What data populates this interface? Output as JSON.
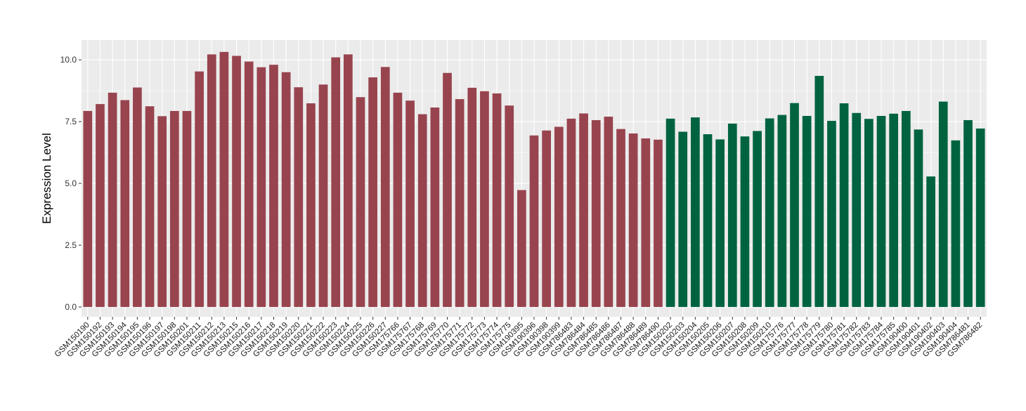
{
  "chart_data": {
    "type": "bar",
    "title": "",
    "xlabel": "",
    "ylabel": "Expression Level",
    "ylim": [
      -0.4,
      10.8
    ],
    "yticks": [
      "0.0",
      "2.5",
      "5.0",
      "7.5",
      "10.0"
    ],
    "grid": true,
    "legend": "none",
    "colors": {
      "series_1": "#98444f",
      "series_2": "#006340",
      "panel": "#ebebeb",
      "grid": "#ffffff"
    },
    "categories": [
      "GSM150190",
      "GSM150192",
      "GSM150193",
      "GSM150194",
      "GSM150195",
      "GSM150196",
      "GSM150197",
      "GSM150198",
      "GSM150201",
      "GSM150211",
      "GSM150212",
      "GSM150213",
      "GSM150215",
      "GSM150216",
      "GSM150217",
      "GSM150218",
      "GSM150219",
      "GSM150220",
      "GSM150221",
      "GSM150222",
      "GSM150223",
      "GSM150224",
      "GSM150225",
      "GSM150226",
      "GSM150227",
      "GSM175766",
      "GSM175767",
      "GSM175768",
      "GSM175769",
      "GSM175770",
      "GSM175771",
      "GSM175772",
      "GSM175773",
      "GSM175774",
      "GSM175775",
      "GSM190395",
      "GSM190396",
      "GSM190398",
      "GSM190399",
      "GSM786483",
      "GSM786484",
      "GSM786485",
      "GSM786486",
      "GSM786487",
      "GSM786488",
      "GSM786489",
      "GSM786490",
      "GSM150202",
      "GSM150203",
      "GSM150204",
      "GSM150205",
      "GSM150206",
      "GSM150207",
      "GSM150208",
      "GSM150209",
      "GSM150210",
      "GSM175776",
      "GSM175777",
      "GSM175778",
      "GSM175779",
      "GSM175780",
      "GSM175781",
      "GSM175782",
      "GSM175783",
      "GSM175784",
      "GSM175785",
      "GSM190400",
      "GSM190401",
      "GSM190402",
      "GSM190403",
      "GSM190404",
      "GSM786481",
      "GSM786482"
    ],
    "values": [
      7.93,
      8.21,
      8.67,
      8.37,
      8.88,
      8.12,
      7.72,
      7.93,
      7.93,
      9.53,
      10.22,
      10.32,
      10.16,
      9.93,
      9.7,
      9.8,
      9.5,
      8.89,
      8.24,
      9.0,
      10.1,
      10.22,
      8.49,
      9.29,
      9.71,
      8.67,
      8.35,
      7.8,
      8.07,
      9.47,
      8.41,
      8.87,
      8.73,
      8.64,
      8.15,
      4.73,
      6.94,
      7.14,
      7.29,
      7.62,
      7.83,
      7.56,
      7.7,
      7.2,
      7.02,
      6.82,
      6.77,
      7.62,
      7.09,
      7.67,
      6.99,
      6.78,
      7.42,
      6.9,
      7.12,
      7.63,
      7.77,
      8.25,
      7.73,
      9.35,
      7.53,
      8.24,
      7.85,
      7.61,
      7.73,
      7.82,
      7.93,
      7.18,
      5.28,
      8.31,
      6.74,
      7.56,
      7.22
    ],
    "groups": [
      "series_1",
      "series_1",
      "series_1",
      "series_1",
      "series_1",
      "series_1",
      "series_1",
      "series_1",
      "series_1",
      "series_1",
      "series_1",
      "series_1",
      "series_1",
      "series_1",
      "series_1",
      "series_1",
      "series_1",
      "series_1",
      "series_1",
      "series_1",
      "series_1",
      "series_1",
      "series_1",
      "series_1",
      "series_1",
      "series_1",
      "series_1",
      "series_1",
      "series_1",
      "series_1",
      "series_1",
      "series_1",
      "series_1",
      "series_1",
      "series_1",
      "series_1",
      "series_1",
      "series_1",
      "series_1",
      "series_1",
      "series_1",
      "series_1",
      "series_1",
      "series_1",
      "series_1",
      "series_1",
      "series_1",
      "series_2",
      "series_2",
      "series_2",
      "series_2",
      "series_2",
      "series_2",
      "series_2",
      "series_2",
      "series_2",
      "series_2",
      "series_2",
      "series_2",
      "series_2",
      "series_2",
      "series_2",
      "series_2",
      "series_2",
      "series_2",
      "series_2",
      "series_2",
      "series_2",
      "series_2",
      "series_2",
      "series_2",
      "series_2",
      "series_2"
    ]
  }
}
